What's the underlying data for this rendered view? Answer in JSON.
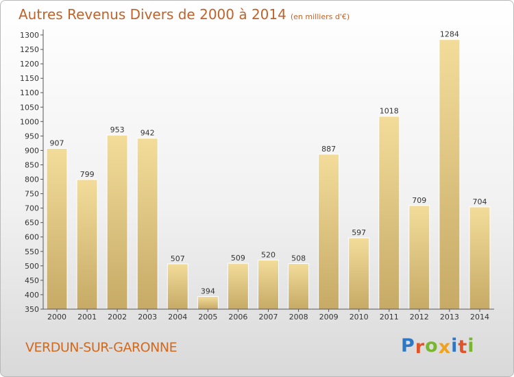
{
  "title": {
    "main": "Autres Revenus Divers de 2000 à 2014",
    "unit": "(en milliers d'€)"
  },
  "commune": "VERDUN-SUR-GARONNE",
  "brand": {
    "letters": [
      "P",
      "r",
      "o",
      "x",
      "i",
      "t",
      "i"
    ],
    "colors": [
      "#2e77c4",
      "#e2532a",
      "#7ab52f",
      "#f0a21c",
      "#2e77c4",
      "#e2532a",
      "#7ab52f"
    ]
  },
  "colors": {
    "bar_top": "#f3dc9a",
    "bar_bottom": "#c6aa66",
    "title": "#c0622a",
    "commune": "#d2691e"
  },
  "chart_data": {
    "type": "bar",
    "title": "Autres Revenus Divers de 2000 à 2014",
    "categories": [
      "2000",
      "2001",
      "2002",
      "2003",
      "2004",
      "2005",
      "2006",
      "2007",
      "2008",
      "2009",
      "2010",
      "2011",
      "2012",
      "2013",
      "2014"
    ],
    "values": [
      907,
      799,
      953,
      942,
      507,
      394,
      509,
      520,
      508,
      887,
      597,
      1018,
      709,
      1284,
      704
    ],
    "value_labels": [
      "907",
      "799",
      "953",
      "942",
      "507",
      "394",
      "509",
      "520",
      "508",
      "887",
      "597",
      "1018",
      "709",
      "1284",
      "704"
    ],
    "yticks": [
      "350",
      "400",
      "450",
      "500",
      "550",
      "600",
      "650",
      "700",
      "750",
      "800",
      "850",
      "900",
      "950",
      "1000",
      "1050",
      "1100",
      "1150",
      "1200",
      "1250",
      "1300"
    ],
    "ylim": [
      350,
      1300
    ],
    "grid": false
  }
}
